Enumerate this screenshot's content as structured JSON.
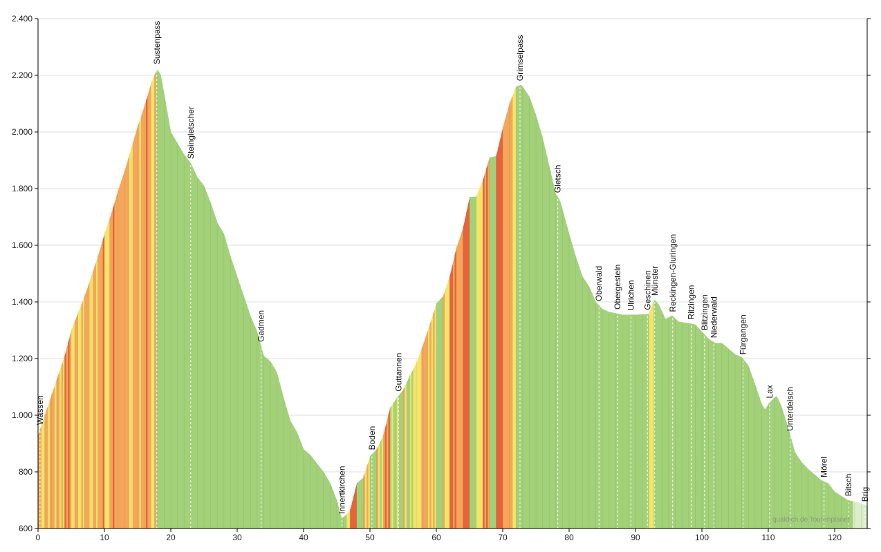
{
  "chart_data": {
    "type": "area",
    "title": "",
    "xlabel": "",
    "ylabel": "",
    "xlim": [
      0,
      125
    ],
    "ylim": [
      600,
      2400
    ],
    "grid": true,
    "x_ticks": [
      0,
      10,
      20,
      30,
      40,
      50,
      60,
      70,
      80,
      90,
      100,
      110,
      120
    ],
    "x_tick_labels": [
      "0",
      "10",
      "20",
      "30",
      "40",
      "50",
      "60",
      "70",
      "80",
      "90",
      "100",
      "110",
      "120"
    ],
    "y_ticks": [
      600,
      800,
      1000,
      1200,
      1400,
      1600,
      1800,
      2000,
      2200,
      2400
    ],
    "y_tick_labels": [
      "600",
      "800",
      "1.000",
      "1.200",
      "1.400",
      "1.600",
      "1.800",
      "2.000",
      "2.200",
      "2.400"
    ],
    "profile": [
      [
        0,
        930
      ],
      [
        1,
        1000
      ],
      [
        2,
        1070
      ],
      [
        3,
        1140
      ],
      [
        4,
        1210
      ],
      [
        5,
        1300
      ],
      [
        6,
        1360
      ],
      [
        7,
        1420
      ],
      [
        8,
        1490
      ],
      [
        9,
        1560
      ],
      [
        10,
        1640
      ],
      [
        11,
        1710
      ],
      [
        12,
        1790
      ],
      [
        13,
        1860
      ],
      [
        14,
        1940
      ],
      [
        15,
        2020
      ],
      [
        16,
        2090
      ],
      [
        17,
        2170
      ],
      [
        17.9,
        2224
      ],
      [
        18.5,
        2200
      ],
      [
        20,
        2000
      ],
      [
        21,
        1960
      ],
      [
        22,
        1920
      ],
      [
        23,
        1890
      ],
      [
        24,
        1840
      ],
      [
        25,
        1810
      ],
      [
        26,
        1750
      ],
      [
        27,
        1680
      ],
      [
        28,
        1640
      ],
      [
        29,
        1560
      ],
      [
        30,
        1490
      ],
      [
        31,
        1420
      ],
      [
        32,
        1350
      ],
      [
        33,
        1295
      ],
      [
        34,
        1210
      ],
      [
        35,
        1190
      ],
      [
        36,
        1150
      ],
      [
        37,
        1060
      ],
      [
        38,
        980
      ],
      [
        39,
        940
      ],
      [
        40,
        880
      ],
      [
        41,
        860
      ],
      [
        42,
        830
      ],
      [
        43,
        800
      ],
      [
        44,
        760
      ],
      [
        45,
        700
      ],
      [
        45.7,
        635
      ],
      [
        46.5,
        650
      ],
      [
        47,
        665
      ],
      [
        48,
        760
      ],
      [
        49,
        780
      ],
      [
        50,
        855
      ],
      [
        51,
        880
      ],
      [
        52,
        930
      ],
      [
        53,
        1025
      ],
      [
        54,
        1060
      ],
      [
        55,
        1090
      ],
      [
        56,
        1140
      ],
      [
        57,
        1185
      ],
      [
        58,
        1250
      ],
      [
        59,
        1320
      ],
      [
        60,
        1395
      ],
      [
        61,
        1420
      ],
      [
        62,
        1490
      ],
      [
        63,
        1590
      ],
      [
        64,
        1660
      ],
      [
        65,
        1770
      ],
      [
        66,
        1772
      ],
      [
        67,
        1830
      ],
      [
        68,
        1910
      ],
      [
        69,
        1915
      ],
      [
        70,
        2015
      ],
      [
        71,
        2100
      ],
      [
        72,
        2160
      ],
      [
        72.8,
        2167
      ],
      [
        74,
        2125
      ],
      [
        75,
        2060
      ],
      [
        76,
        1980
      ],
      [
        77,
        1880
      ],
      [
        78,
        1780
      ],
      [
        78.6,
        1760
      ],
      [
        80,
        1640
      ],
      [
        81,
        1560
      ],
      [
        82,
        1490
      ],
      [
        83,
        1455
      ],
      [
        84,
        1400
      ],
      [
        85,
        1375
      ],
      [
        86,
        1365
      ],
      [
        88,
        1355
      ],
      [
        90,
        1355
      ],
      [
        92,
        1357
      ],
      [
        92.8,
        1410
      ],
      [
        93.5,
        1390
      ],
      [
        94.5,
        1340
      ],
      [
        95.5,
        1352
      ],
      [
        96.5,
        1330
      ],
      [
        98,
        1325
      ],
      [
        99,
        1320
      ],
      [
        100,
        1295
      ],
      [
        101,
        1270
      ],
      [
        102,
        1255
      ],
      [
        103,
        1255
      ],
      [
        104,
        1235
      ],
      [
        105,
        1215
      ],
      [
        106,
        1205
      ],
      [
        107,
        1175
      ],
      [
        108,
        1110
      ],
      [
        109,
        1040
      ],
      [
        109.5,
        1020
      ],
      [
        110,
        1040
      ],
      [
        111.2,
        1070
      ],
      [
        112,
        1030
      ],
      [
        113,
        955
      ],
      [
        114,
        870
      ],
      [
        115,
        835
      ],
      [
        116,
        810
      ],
      [
        117,
        790
      ],
      [
        118,
        770
      ],
      [
        119,
        760
      ],
      [
        120,
        730
      ],
      [
        121,
        715
      ],
      [
        122,
        700
      ],
      [
        123,
        695
      ],
      [
        124,
        688
      ],
      [
        125,
        680
      ]
    ],
    "places": [
      {
        "name": "Wassen",
        "km": 0.3
      },
      {
        "name": "Sustenpass",
        "km": 17.9
      },
      {
        "name": "Steingletscher",
        "km": 23
      },
      {
        "name": "Gadmen",
        "km": 33.6
      },
      {
        "name": "Innertkirchen",
        "km": 45.8
      },
      {
        "name": "Boden",
        "km": 50.3
      },
      {
        "name": "Guttannen",
        "km": 54.3
      },
      {
        "name": "Grimselpass",
        "km": 72.6
      },
      {
        "name": "Gletsch",
        "km": 78.3
      },
      {
        "name": "Oberwald",
        "km": 84.5
      },
      {
        "name": "Obergesteln",
        "km": 87.3
      },
      {
        "name": "Ulrichen",
        "km": 89.3
      },
      {
        "name": "Geschinen",
        "km": 91.8
      },
      {
        "name": "Münster",
        "km": 92.9
      },
      {
        "name": "Reckingen-Gluringen",
        "km": 95.6
      },
      {
        "name": "Ritzingen",
        "km": 98.4
      },
      {
        "name": "Blitzingen",
        "km": 100.4
      },
      {
        "name": "Niederwald",
        "km": 101.8
      },
      {
        "name": "Fürgangen",
        "km": 106.2
      },
      {
        "name": "Lax",
        "km": 110.2
      },
      {
        "name": "Unterdeisch",
        "km": 113.3
      },
      {
        "name": "Mörel",
        "km": 118.4
      },
      {
        "name": "Bitsch",
        "km": 122.1
      },
      {
        "name": "Brig",
        "km": 125
      }
    ],
    "gradient_colors": {
      "flat": "#a3d17a",
      "moderate": "#f3e46a",
      "steep": "#f5a65a",
      "very_steep": "#e8623a",
      "end": "#dcedcb"
    },
    "watermark": "quäldich.de Tourenplaner"
  }
}
